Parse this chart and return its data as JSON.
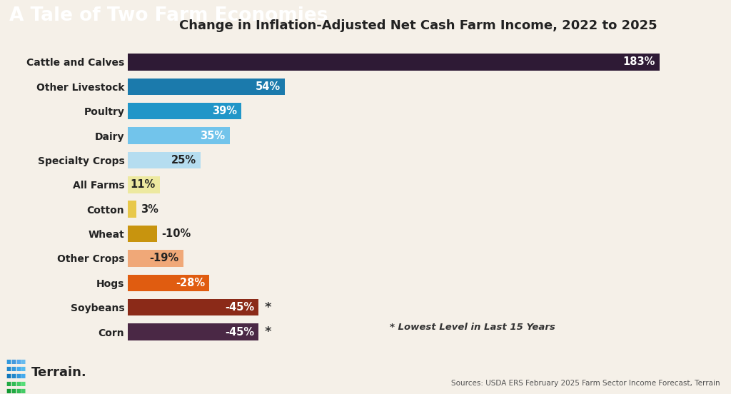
{
  "title": "A Tale of Two Farm Economies",
  "subtitle": "Change in Inflation-Adjusted Net Cash Farm Income, 2022 to 2025",
  "categories": [
    "Cattle and Calves",
    "Other Livestock",
    "Poultry",
    "Dairy",
    "Specialty Crops",
    "All Farms",
    "Cotton",
    "Wheat",
    "Other Crops",
    "Hogs",
    "Soybeans",
    "Corn"
  ],
  "values": [
    183,
    54,
    39,
    35,
    25,
    11,
    3,
    -10,
    -19,
    -28,
    -45,
    -45
  ],
  "bar_values_abs": [
    183,
    54,
    39,
    35,
    25,
    11,
    3,
    10,
    19,
    28,
    45,
    45
  ],
  "bar_colors": [
    "#2e1a35",
    "#1b7aac",
    "#2196c8",
    "#72c4eb",
    "#b5ddf0",
    "#ede9a0",
    "#e8c84a",
    "#c8940e",
    "#f0a878",
    "#e05c10",
    "#8b2a18",
    "#4a2845"
  ],
  "label_inside": [
    true,
    true,
    true,
    true,
    true,
    true,
    false,
    false,
    true,
    true,
    true,
    true
  ],
  "label_colors": [
    "#ffffff",
    "#ffffff",
    "#ffffff",
    "#ffffff",
    "#222222",
    "#222222",
    "#222222",
    "#222222",
    "#222222",
    "#ffffff",
    "#ffffff",
    "#ffffff"
  ],
  "asterisk": [
    false,
    false,
    false,
    false,
    false,
    false,
    false,
    false,
    false,
    false,
    true,
    true
  ],
  "asterisk_note": "* Lowest Level in Last 15 Years",
  "source_text": "Sources: USDA ERS February 2025 Farm Sector Income Forecast, Terrain",
  "header_bg": "#2d4a2d",
  "header_text_color": "#ffffff",
  "bg_color": "#f5f0e8",
  "title_fontsize": 19,
  "subtitle_fontsize": 13,
  "xlim_max": 200,
  "figsize": [
    10.24,
    5.52
  ],
  "dpi": 100
}
